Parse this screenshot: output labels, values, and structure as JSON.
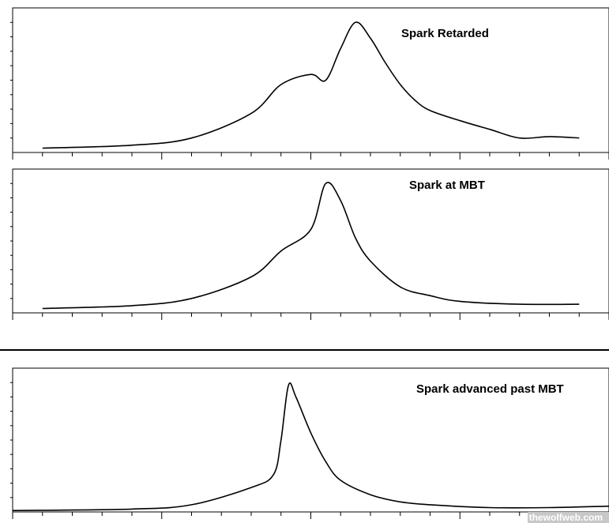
{
  "chart_data": [
    {
      "type": "line",
      "title": "Spark Retarded",
      "x": [
        -180,
        -120,
        -80,
        -40,
        -20,
        0,
        10,
        20,
        30,
        40,
        50,
        60,
        70,
        80,
        100,
        120,
        140,
        160,
        180
      ],
      "series": [
        {
          "values": [
            0.03,
            0.05,
            0.1,
            0.27,
            0.47,
            0.54,
            0.5,
            0.72,
            0.9,
            0.79,
            0.62,
            0.47,
            0.36,
            0.29,
            0.22,
            0.16,
            0.1,
            0.11,
            0.1
          ]
        }
      ],
      "xlim": [
        -200,
        200
      ],
      "ylim": [
        0,
        1
      ]
    },
    {
      "type": "line",
      "title": "Spark at MBT",
      "x": [
        -180,
        -120,
        -80,
        -40,
        -20,
        0,
        10,
        20,
        30,
        40,
        60,
        80,
        100,
        140,
        180
      ],
      "series": [
        {
          "values": [
            0.03,
            0.05,
            0.1,
            0.25,
            0.43,
            0.58,
            0.9,
            0.78,
            0.52,
            0.36,
            0.18,
            0.12,
            0.08,
            0.06,
            0.06
          ]
        }
      ],
      "xlim": [
        -200,
        200
      ],
      "ylim": [
        0,
        1
      ]
    },
    {
      "type": "line",
      "title": "Spark advanced past MBT",
      "x": [
        -200,
        -120,
        -80,
        -40,
        -25,
        -20,
        -15,
        -10,
        0,
        10,
        20,
        40,
        60,
        80,
        120,
        160,
        200
      ],
      "series": [
        {
          "values": [
            0.01,
            0.02,
            0.05,
            0.17,
            0.26,
            0.5,
            0.88,
            0.8,
            0.55,
            0.35,
            0.22,
            0.12,
            0.07,
            0.05,
            0.03,
            0.03,
            0.04
          ]
        }
      ],
      "xlim": [
        -200,
        200
      ],
      "ylim": [
        0,
        1
      ]
    }
  ],
  "watermark": "thewolfweb.com"
}
